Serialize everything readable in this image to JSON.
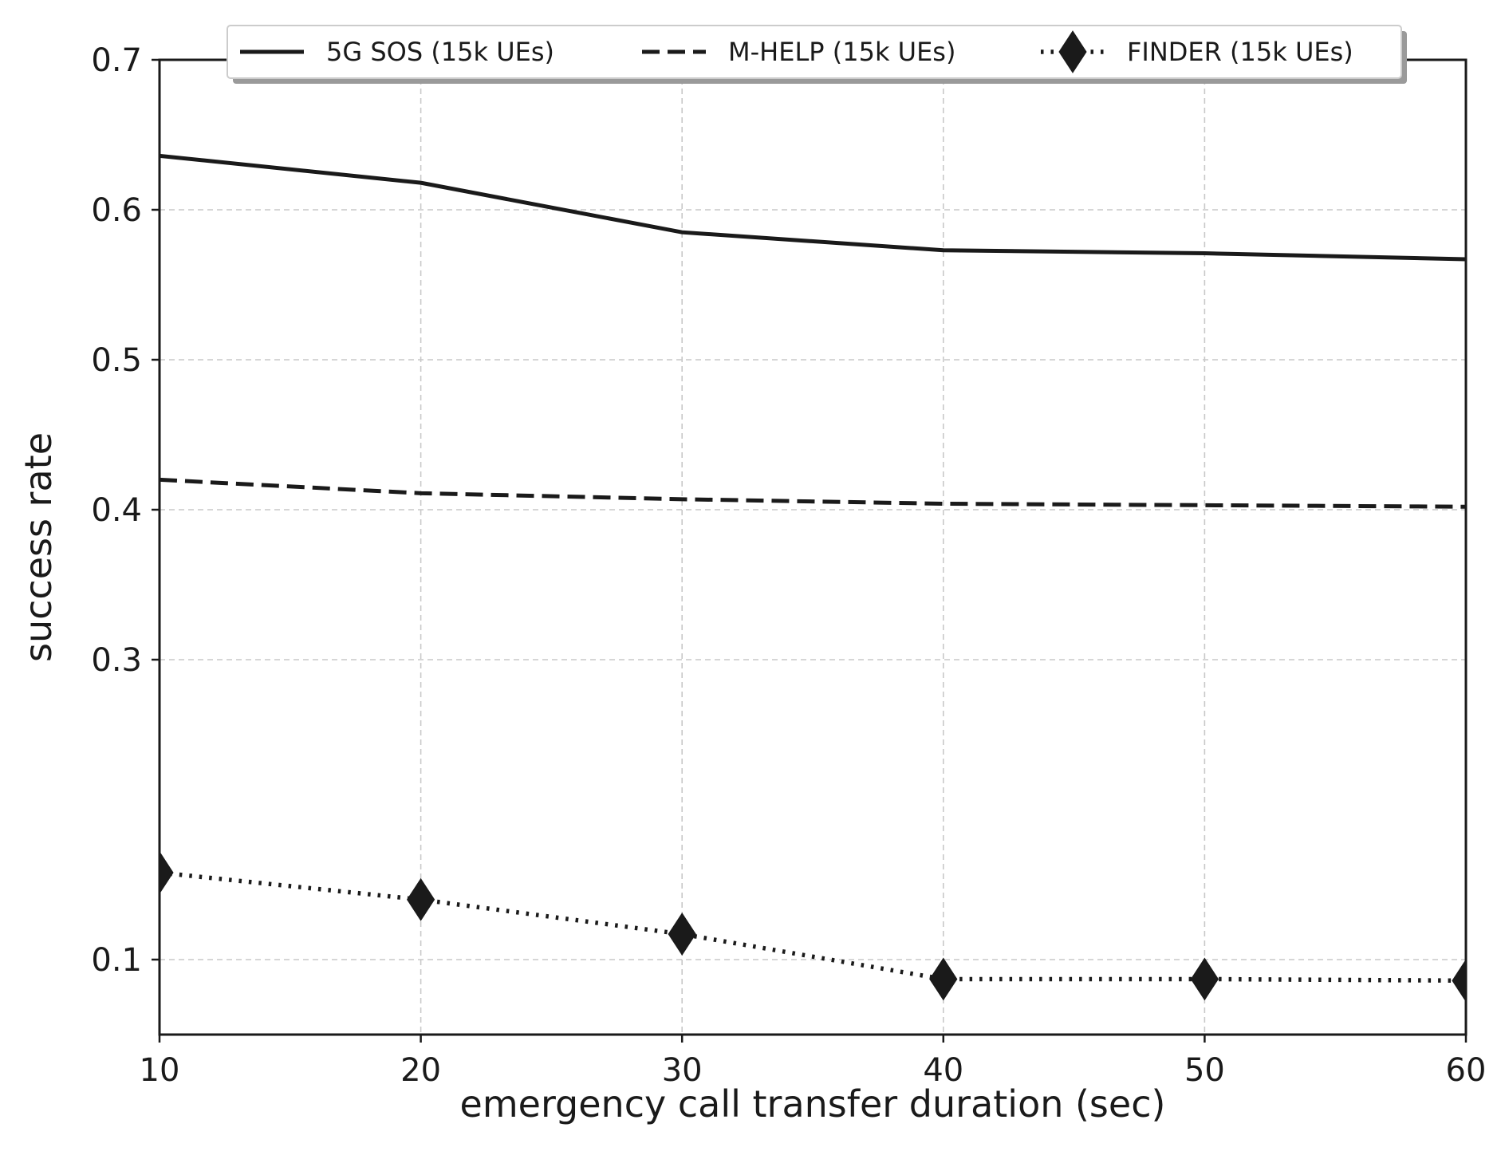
{
  "chart_data": {
    "type": "line",
    "title": "",
    "xlabel": "emergency call transfer duration (sec)",
    "ylabel": "success rate",
    "x": [
      10,
      20,
      30,
      40,
      50,
      60
    ],
    "xlim": [
      10,
      60
    ],
    "ylim": [
      0.05,
      0.7
    ],
    "xticks": [
      10,
      20,
      30,
      40,
      50,
      60
    ],
    "yticks": [
      0.1,
      0.3,
      0.4,
      0.5,
      0.6,
      0.7
    ],
    "xtick_labels": [
      "10",
      "20",
      "30",
      "40",
      "50",
      "60"
    ],
    "ytick_labels": [
      "0.1",
      "0.3",
      "0.4",
      "0.5",
      "0.6",
      "0.7"
    ],
    "grid": true,
    "legend_position": "top",
    "series": [
      {
        "name": "5G SOS (15k UEs)",
        "style": "solid",
        "marker": "none",
        "color": "#1a1a1a",
        "values": [
          0.636,
          0.618,
          0.585,
          0.573,
          0.571,
          0.567
        ]
      },
      {
        "name": "M-HELP (15k UEs)",
        "style": "dashed",
        "marker": "none",
        "color": "#1a1a1a",
        "values": [
          0.42,
          0.411,
          0.407,
          0.404,
          0.403,
          0.402
        ]
      },
      {
        "name": "FINDER (15k UEs)",
        "style": "dotted",
        "marker": "diamond",
        "color": "#1a1a1a",
        "values": [
          0.158,
          0.14,
          0.117,
          0.087,
          0.087,
          0.086
        ]
      }
    ]
  }
}
